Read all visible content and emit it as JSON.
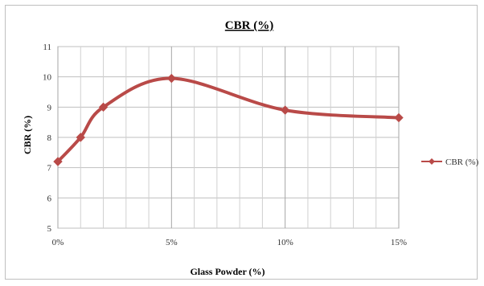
{
  "chart_data": {
    "type": "line",
    "title": "CBR (%)",
    "xlabel": "Glass Powder (%)",
    "ylabel": "CBR (%)",
    "x_tick_labels": [
      "0%",
      "5%",
      "10%",
      "15%"
    ],
    "x_tick_values": [
      0,
      5,
      10,
      15
    ],
    "xlim": [
      0,
      15
    ],
    "ylim": [
      5,
      11
    ],
    "y_ticks": [
      5,
      6,
      7,
      8,
      9,
      10,
      11
    ],
    "grid": true,
    "legend_position": "right",
    "series": [
      {
        "name": "CBR (%)",
        "color": "#b94a48",
        "marker": "diamond",
        "x": [
          0,
          1,
          2,
          5,
          10,
          15
        ],
        "y": [
          7.2,
          8.0,
          9.0,
          9.95,
          8.9,
          8.65
        ]
      }
    ]
  }
}
